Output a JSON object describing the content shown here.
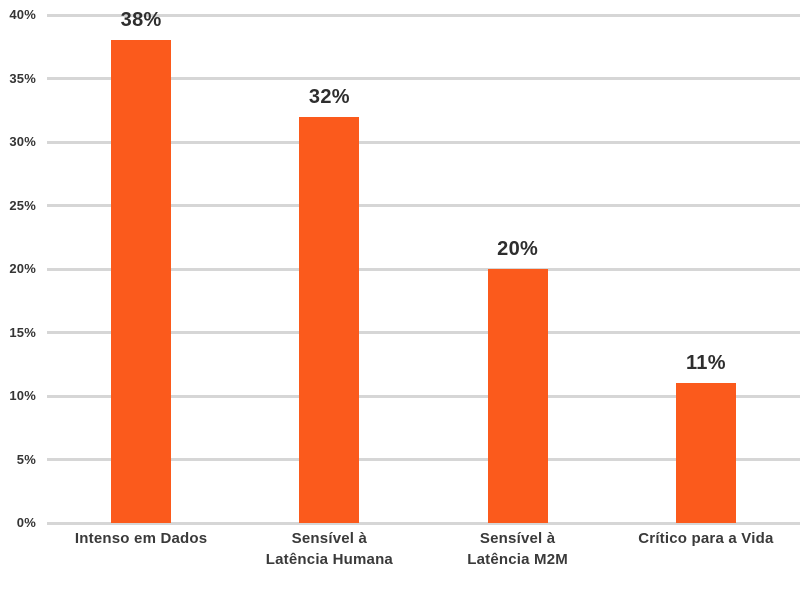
{
  "chart_data": {
    "type": "bar",
    "title": "",
    "xlabel": "",
    "ylabel": "",
    "categories": [
      "Intenso em Dados",
      "Sensível à\nLatência Humana",
      "Sensível à\nLatência M2M",
      "Crítico para a Vida"
    ],
    "values": [
      38,
      32,
      20,
      11
    ],
    "value_labels": [
      "38%",
      "32%",
      "20%",
      "11%"
    ],
    "ylim": [
      0,
      40
    ],
    "y_ticks": [
      0,
      5,
      10,
      15,
      20,
      25,
      30,
      35,
      40
    ],
    "y_tick_labels": [
      "0%",
      "5%",
      "10%",
      "15%",
      "20%",
      "25%",
      "30%",
      "35%",
      "40%"
    ],
    "grid": true,
    "legend": "none",
    "colors": {
      "bar": "#fb5a1c",
      "gridline": "#d6d6d6",
      "value_label": "#2e2e2e",
      "tick_label": "#353535",
      "category_label": "#3a3a3a",
      "background": "#ffffff"
    }
  }
}
